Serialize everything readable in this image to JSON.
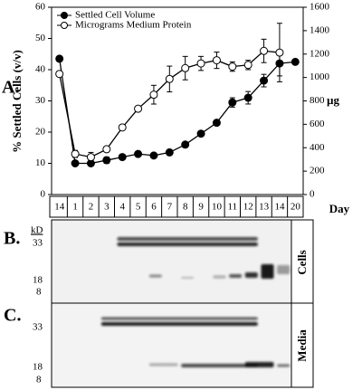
{
  "chart_data": {
    "type": "line",
    "y_label": "% Settled Cells (v/v)",
    "y2_label": "µg",
    "x_label": "Day",
    "categories": [
      "14",
      "1",
      "2",
      "3",
      "4",
      "5",
      "6",
      "7",
      "8",
      "9",
      "10",
      "11",
      "12",
      "13",
      "14",
      "20"
    ],
    "ylim": [
      0,
      60
    ],
    "yticks": [
      0,
      10,
      20,
      30,
      40,
      50,
      60
    ],
    "y2lim": [
      0,
      1600
    ],
    "y2ticks": [
      0,
      200,
      400,
      600,
      800,
      1000,
      1200,
      1400,
      1600
    ],
    "legend": "upper left",
    "series": [
      {
        "name": "Settled Cell Volume",
        "color": "#000000",
        "marker": "filled",
        "axis": "y",
        "values": [
          43.5,
          10,
          10,
          11,
          12,
          13,
          12.5,
          13.5,
          16,
          19.5,
          23,
          29.5,
          31,
          36.5,
          42,
          42.5
        ],
        "errors": [
          null,
          null,
          null,
          1,
          null,
          null,
          null,
          null,
          null,
          null,
          null,
          1.5,
          2,
          2,
          4,
          null
        ]
      },
      {
        "name": "Micrograms Medium Protein",
        "color": "#000000",
        "marker": "open",
        "axis": "y2",
        "values": [
          1030,
          347,
          320,
          387,
          573,
          733,
          853,
          987,
          1080,
          1120,
          1147,
          1093,
          1107,
          1227,
          1213,
          null
        ],
        "errors": [
          null,
          30,
          40,
          20,
          null,
          null,
          80,
          110,
          100,
          60,
          70,
          40,
          40,
          100,
          250,
          null
        ]
      }
    ]
  },
  "figure": {
    "panel_labels": [
      "A.",
      "B.",
      "C."
    ],
    "kd_unit": "kD",
    "markers": [
      33,
      18,
      8
    ],
    "gel_labels": [
      "Cells",
      "Media"
    ]
  }
}
